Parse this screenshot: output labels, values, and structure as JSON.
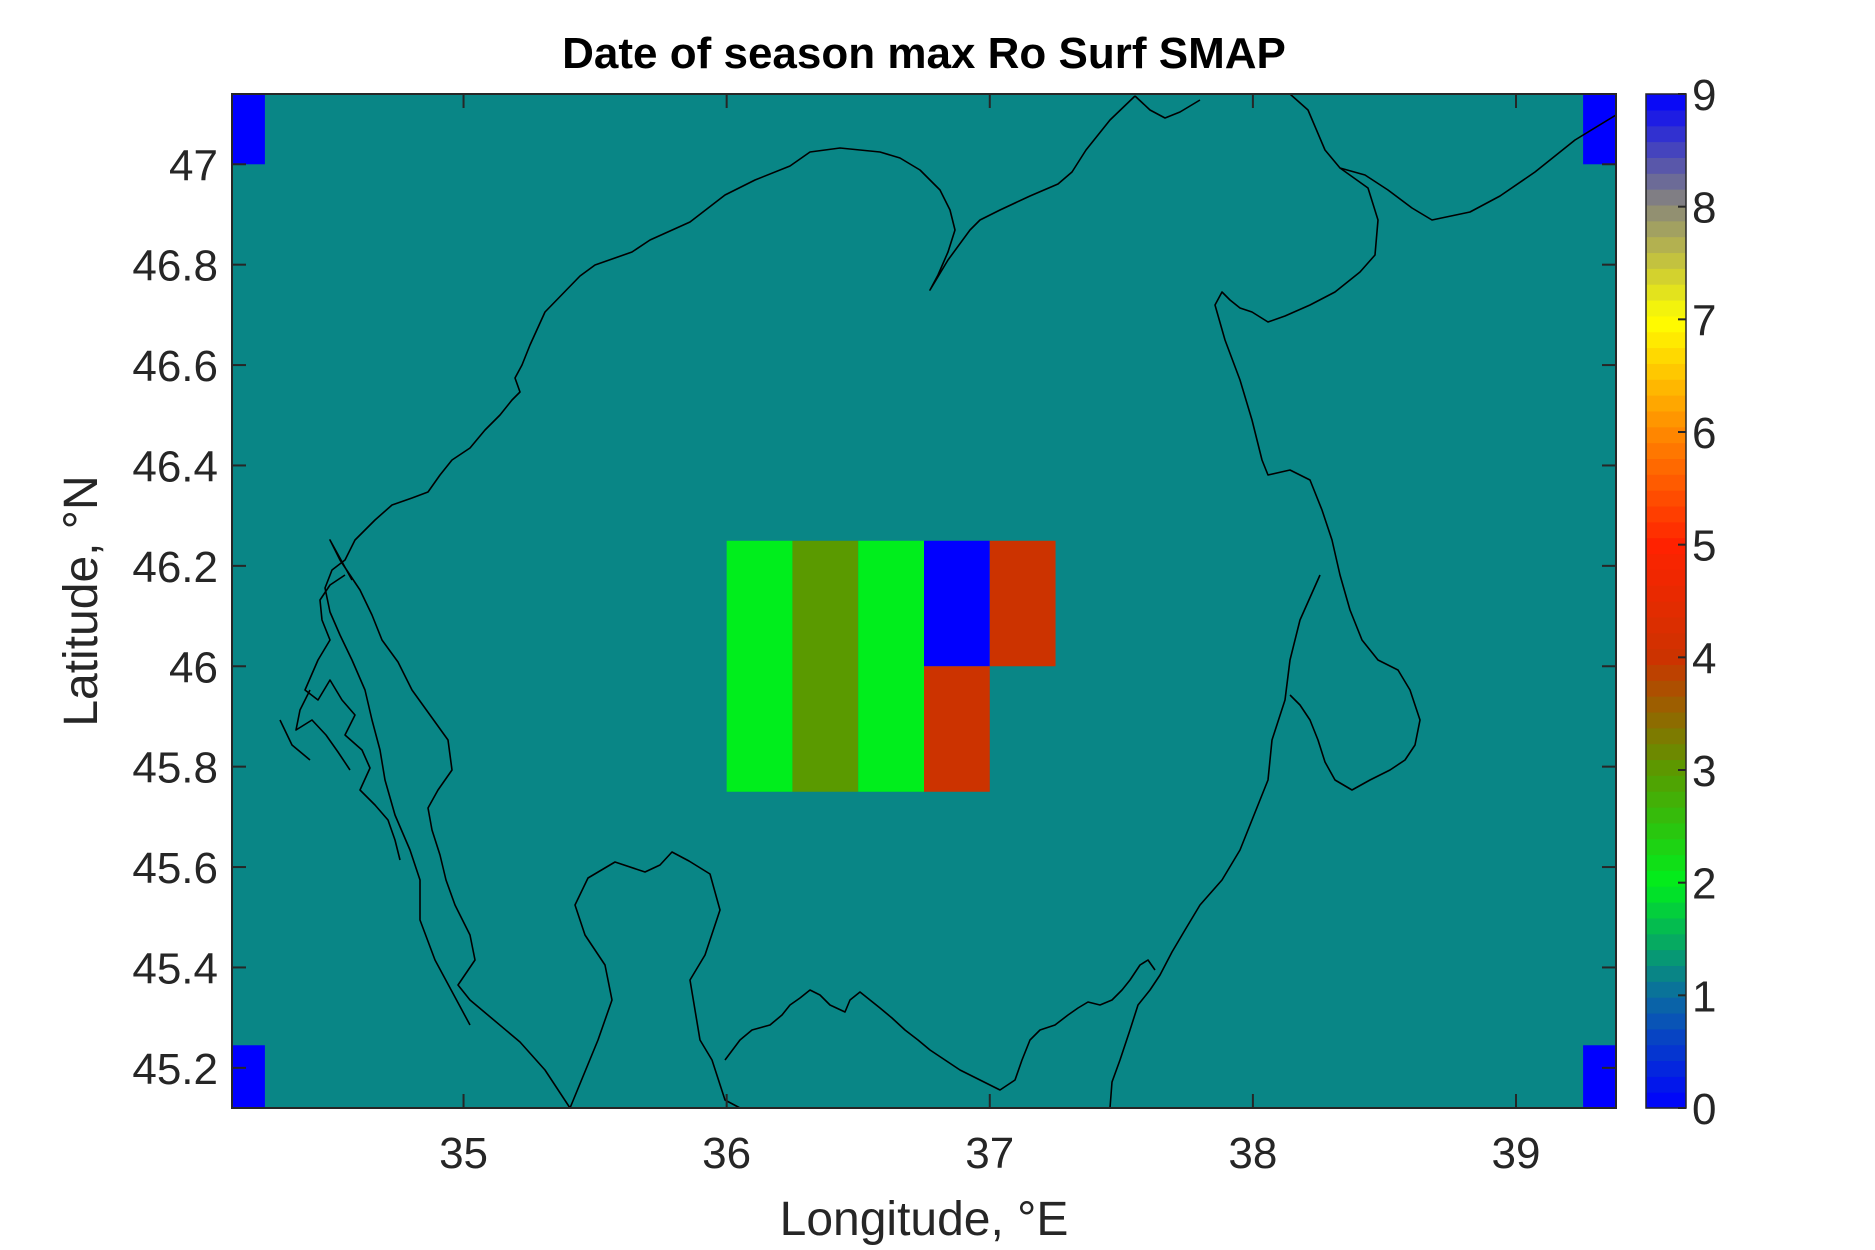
{
  "chart_data": {
    "type": "heatmap",
    "title": "Date of season max Ro Surf SMAP",
    "xlabel": "Longitude, °E",
    "ylabel": "Latitude, °N",
    "xlim": [
      34.12,
      39.38
    ],
    "ylim": [
      45.12,
      47.14
    ],
    "x_ticks": [
      35,
      36,
      37,
      38,
      39
    ],
    "y_ticks": [
      45.2,
      45.4,
      45.6,
      45.8,
      46,
      46.2,
      46.4,
      46.6,
      46.8,
      47
    ],
    "background_value": 1.2,
    "cells": [
      {
        "lon": [
          36.0,
          36.25
        ],
        "lat": [
          45.75,
          46.25
        ],
        "value": 2
      },
      {
        "lon": [
          36.25,
          36.5
        ],
        "lat": [
          45.75,
          46.25
        ],
        "value": 3
      },
      {
        "lon": [
          36.5,
          36.75
        ],
        "lat": [
          45.75,
          46.25
        ],
        "value": 2
      },
      {
        "lon": [
          36.75,
          37.0
        ],
        "lat": [
          46.0,
          46.25
        ],
        "value": 0
      },
      {
        "lon": [
          37.0,
          37.25
        ],
        "lat": [
          46.0,
          46.25
        ],
        "value": 4
      },
      {
        "lon": [
          36.75,
          37.0
        ],
        "lat": [
          45.75,
          46.0
        ],
        "value": 4
      },
      {
        "lon": [
          34.12,
          34.245
        ],
        "lat": [
          47.0,
          47.14
        ],
        "value": 0
      },
      {
        "lon": [
          39.255,
          39.38
        ],
        "lat": [
          47.0,
          47.14
        ],
        "value": 0
      },
      {
        "lon": [
          34.12,
          34.245
        ],
        "lat": [
          45.12,
          45.245
        ],
        "value": 0
      },
      {
        "lon": [
          39.255,
          39.38
        ],
        "lat": [
          45.12,
          45.245
        ],
        "value": 0
      }
    ],
    "colorbar": {
      "min": 0,
      "max": 9,
      "ticks": [
        0,
        1,
        2,
        3,
        4,
        5,
        6,
        7,
        8,
        9
      ],
      "stops": [
        "#0000ff",
        "#0b6ca0",
        "#00ee1c",
        "#5a9a00",
        "#cc3300",
        "#ff2200",
        "#ff8800",
        "#ffff00",
        "#8c8a78",
        "#0000ff"
      ]
    },
    "coastline_color": "#000000",
    "grid": false
  }
}
